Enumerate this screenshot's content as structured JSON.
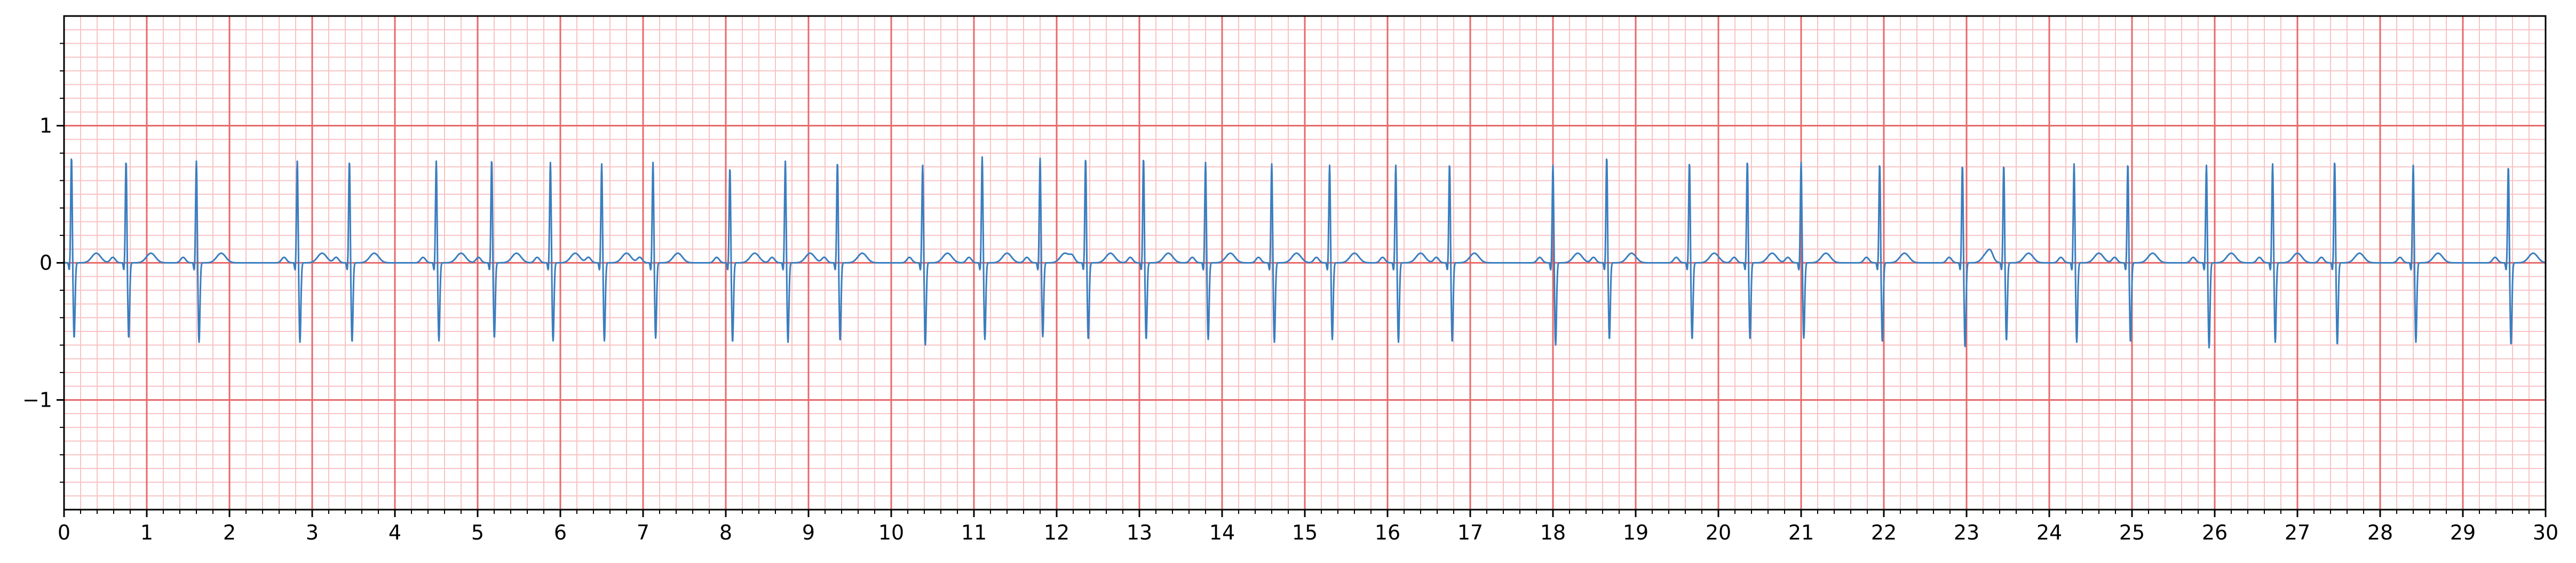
{
  "chart_data": {
    "type": "line",
    "title": "",
    "xlabel": "",
    "ylabel": "",
    "xlim": [
      0,
      30
    ],
    "ylim": [
      -1.8,
      1.8
    ],
    "x_ticks": [
      "0",
      "1",
      "2",
      "3",
      "4",
      "5",
      "6",
      "7",
      "8",
      "9",
      "10",
      "11",
      "12",
      "13",
      "14",
      "15",
      "16",
      "17",
      "18",
      "19",
      "20",
      "21",
      "22",
      "23",
      "24",
      "25",
      "26",
      "27",
      "28",
      "29",
      "30"
    ],
    "x_tick_values": [
      0,
      1,
      2,
      3,
      4,
      5,
      6,
      7,
      8,
      9,
      10,
      11,
      12,
      13,
      14,
      15,
      16,
      17,
      18,
      19,
      20,
      21,
      22,
      23,
      24,
      25,
      26,
      27,
      28,
      29,
      30
    ],
    "y_ticks": [
      "−1",
      "0",
      "1"
    ],
    "y_tick_values": [
      -1,
      0,
      1
    ],
    "grid": true,
    "grid_major_x": 1,
    "grid_minor_x": 0.2,
    "grid_major_y": 1,
    "grid_minor_y": 0.1,
    "background_color": "#ffffff",
    "grid_major_color": "#e8696b",
    "grid_minor_color": "#f9c3c4",
    "line_color": "#3a7ebf",
    "series": [
      {
        "beats": [
          {
            "t": 0.09,
            "r": 0.78,
            "s": -0.55
          },
          {
            "t": 0.75,
            "r": 0.75,
            "s": -0.55
          },
          {
            "t": 1.6,
            "r": 0.75,
            "s": -0.58
          },
          {
            "t": 2.82,
            "r": 0.75,
            "s": -0.58
          },
          {
            "t": 3.45,
            "r": 0.75,
            "s": -0.58
          },
          {
            "t": 4.5,
            "r": 0.75,
            "s": -0.57
          },
          {
            "t": 5.17,
            "r": 0.76,
            "s": -0.55
          },
          {
            "t": 5.88,
            "r": 0.74,
            "s": -0.57
          },
          {
            "t": 6.5,
            "r": 0.73,
            "s": -0.57
          },
          {
            "t": 7.12,
            "r": 0.74,
            "s": -0.55
          },
          {
            "t": 8.05,
            "r": 0.7,
            "s": -0.58
          },
          {
            "t": 8.72,
            "r": 0.75,
            "s": -0.58
          },
          {
            "t": 9.35,
            "r": 0.74,
            "s": -0.57
          },
          {
            "t": 10.38,
            "r": 0.72,
            "s": -0.6
          },
          {
            "t": 11.1,
            "r": 0.78,
            "s": -0.56
          },
          {
            "t": 11.8,
            "r": 0.77,
            "s": -0.54
          },
          {
            "t": 12.35,
            "r": 0.77,
            "s": -0.56
          },
          {
            "t": 13.05,
            "r": 0.77,
            "s": -0.56
          },
          {
            "t": 13.8,
            "r": 0.74,
            "s": -0.56
          },
          {
            "t": 14.6,
            "r": 0.73,
            "s": -0.58
          },
          {
            "t": 15.3,
            "r": 0.72,
            "s": -0.56
          },
          {
            "t": 16.1,
            "r": 0.72,
            "s": -0.58
          },
          {
            "t": 16.75,
            "r": 0.73,
            "s": -0.58
          },
          {
            "t": 18.0,
            "r": 0.72,
            "s": -0.6
          },
          {
            "t": 18.65,
            "r": 0.78,
            "s": -0.56
          },
          {
            "t": 19.65,
            "r": 0.74,
            "s": -0.56
          },
          {
            "t": 20.35,
            "r": 0.75,
            "s": -0.56
          },
          {
            "t": 21.0,
            "r": 0.74,
            "s": -0.55
          },
          {
            "t": 21.95,
            "r": 0.73,
            "s": -0.58
          },
          {
            "t": 22.95,
            "r": 0.72,
            "s": -0.62
          },
          {
            "t": 23.45,
            "r": 0.72,
            "s": -0.57
          },
          {
            "t": 24.3,
            "r": 0.73,
            "s": -0.58
          },
          {
            "t": 24.95,
            "r": 0.73,
            "s": -0.58
          },
          {
            "t": 25.9,
            "r": 0.72,
            "s": -0.62
          },
          {
            "t": 26.7,
            "r": 0.73,
            "s": -0.58
          },
          {
            "t": 27.45,
            "r": 0.75,
            "s": -0.6
          },
          {
            "t": 28.4,
            "r": 0.72,
            "s": -0.58
          },
          {
            "t": 29.55,
            "r": 0.71,
            "s": -0.6
          }
        ]
      }
    ]
  }
}
